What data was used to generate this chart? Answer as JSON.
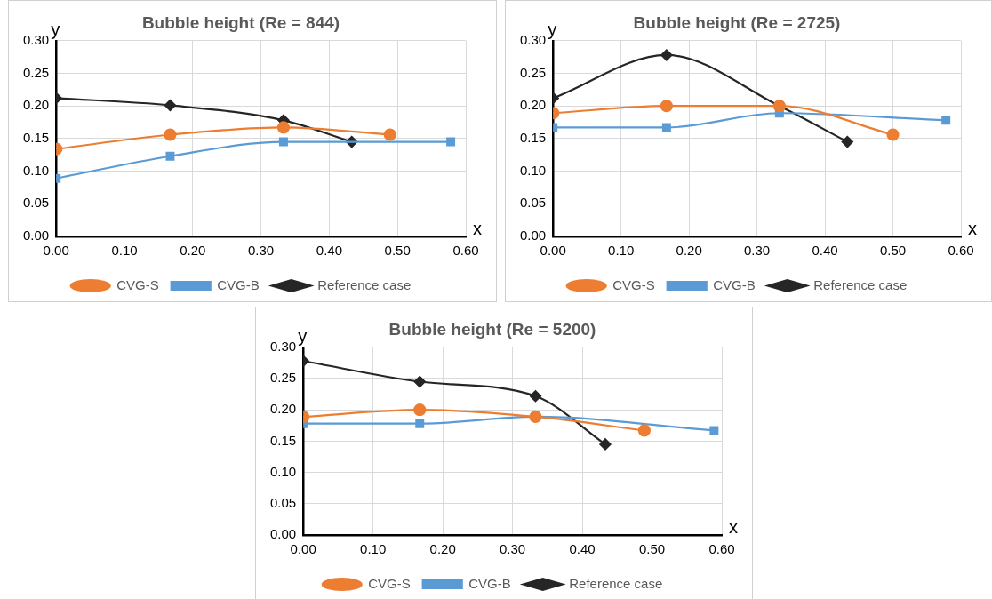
{
  "chart_data": [
    {
      "type": "line",
      "title": "Bubble height (Re = 844)",
      "xlabel": "x",
      "ylabel": "y",
      "xlim": [
        0,
        0.6
      ],
      "xticks": [
        {
          "value": 0,
          "label": "0.00"
        },
        {
          "value": 0.1,
          "label": "0.10"
        },
        {
          "value": 0.2,
          "label": "0.20"
        },
        {
          "value": 0.3,
          "label": "0.30"
        },
        {
          "value": 0.4,
          "label": "0.40"
        },
        {
          "value": 0.5,
          "label": "0.50"
        },
        {
          "value": 0.6,
          "label": "0.60"
        }
      ],
      "ylim": [
        0,
        0.3
      ],
      "yticks": [
        {
          "value": 0,
          "label": "0.00"
        },
        {
          "value": 0.05,
          "label": "0.05"
        },
        {
          "value": 0.1,
          "label": "0.10"
        },
        {
          "value": 0.15,
          "label": "0.15"
        },
        {
          "value": 0.2,
          "label": "0.20"
        },
        {
          "value": 0.25,
          "label": "0.25"
        },
        {
          "value": 0.3,
          "label": "0.30"
        }
      ],
      "grid": true,
      "legend": "bottom",
      "series": [
        {
          "name": "Reference case",
          "color": "#262626",
          "marker": "diamond",
          "x": [
            0,
            0.167,
            0.333,
            0.433
          ],
          "values": [
            0.212,
            0.201,
            0.178,
            0.145
          ]
        },
        {
          "name": "CVG-B",
          "color": "#5b9bd5",
          "marker": "square",
          "x": [
            0,
            0.167,
            0.333,
            0.578
          ],
          "values": [
            0.089,
            0.123,
            0.145,
            0.145
          ]
        },
        {
          "name": "CVG-S",
          "color": "#ed7d31",
          "marker": "circle",
          "x": [
            0,
            0.167,
            0.333,
            0.489
          ],
          "values": [
            0.134,
            0.156,
            0.167,
            0.156
          ]
        }
      ]
    },
    {
      "type": "line",
      "title": "Bubble height (Re = 2725)",
      "xlabel": "x",
      "ylabel": "y",
      "xlim": [
        0,
        0.6
      ],
      "xticks": [
        {
          "value": 0,
          "label": "0.00"
        },
        {
          "value": 0.1,
          "label": "0.10"
        },
        {
          "value": 0.2,
          "label": "0.20"
        },
        {
          "value": 0.3,
          "label": "0.30"
        },
        {
          "value": 0.4,
          "label": "0.40"
        },
        {
          "value": 0.5,
          "label": "0.50"
        },
        {
          "value": 0.6,
          "label": "0.60"
        }
      ],
      "ylim": [
        0,
        0.3
      ],
      "yticks": [
        {
          "value": 0,
          "label": "0.00"
        },
        {
          "value": 0.05,
          "label": "0.05"
        },
        {
          "value": 0.1,
          "label": "0.10"
        },
        {
          "value": 0.15,
          "label": "0.15"
        },
        {
          "value": 0.2,
          "label": "0.20"
        },
        {
          "value": 0.25,
          "label": "0.25"
        },
        {
          "value": 0.3,
          "label": "0.30"
        }
      ],
      "grid": true,
      "legend": "bottom",
      "series": [
        {
          "name": "Reference case",
          "color": "#262626",
          "marker": "diamond",
          "x": [
            0,
            0.167,
            0.333,
            0.433
          ],
          "values": [
            0.212,
            0.278,
            0.2,
            0.145
          ]
        },
        {
          "name": "CVG-B",
          "color": "#5b9bd5",
          "marker": "square",
          "x": [
            0,
            0.167,
            0.333,
            0.578
          ],
          "values": [
            0.167,
            0.167,
            0.189,
            0.178
          ]
        },
        {
          "name": "CVG-S",
          "color": "#ed7d31",
          "marker": "circle",
          "x": [
            0,
            0.167,
            0.333,
            0.5
          ],
          "values": [
            0.189,
            0.2,
            0.2,
            0.156
          ]
        }
      ]
    },
    {
      "type": "line",
      "title": "Bubble height (Re = 5200)",
      "xlabel": "x",
      "ylabel": "y",
      "xlim": [
        0,
        0.6
      ],
      "xticks": [
        {
          "value": 0,
          "label": "0.00"
        },
        {
          "value": 0.1,
          "label": "0.10"
        },
        {
          "value": 0.2,
          "label": "0.20"
        },
        {
          "value": 0.3,
          "label": "0.30"
        },
        {
          "value": 0.4,
          "label": "0.40"
        },
        {
          "value": 0.5,
          "label": "0.50"
        },
        {
          "value": 0.6,
          "label": "0.60"
        }
      ],
      "ylim": [
        0,
        0.3
      ],
      "yticks": [
        {
          "value": 0,
          "label": "0.00"
        },
        {
          "value": 0.05,
          "label": "0.05"
        },
        {
          "value": 0.1,
          "label": "0.10"
        },
        {
          "value": 0.15,
          "label": "0.15"
        },
        {
          "value": 0.2,
          "label": "0.20"
        },
        {
          "value": 0.25,
          "label": "0.25"
        },
        {
          "value": 0.3,
          "label": "0.30"
        }
      ],
      "grid": true,
      "legend": "bottom",
      "series": [
        {
          "name": "Reference case",
          "color": "#262626",
          "marker": "diamond",
          "x": [
            0,
            0.167,
            0.333,
            0.433
          ],
          "values": [
            0.278,
            0.245,
            0.222,
            0.145
          ]
        },
        {
          "name": "CVG-B",
          "color": "#5b9bd5",
          "marker": "square",
          "x": [
            0,
            0.167,
            0.333,
            0.589
          ],
          "values": [
            0.178,
            0.178,
            0.189,
            0.167
          ]
        },
        {
          "name": "CVG-S",
          "color": "#ed7d31",
          "marker": "circle",
          "x": [
            0,
            0.167,
            0.333,
            0.489
          ],
          "values": [
            0.189,
            0.2,
            0.189,
            0.167
          ]
        }
      ]
    }
  ]
}
